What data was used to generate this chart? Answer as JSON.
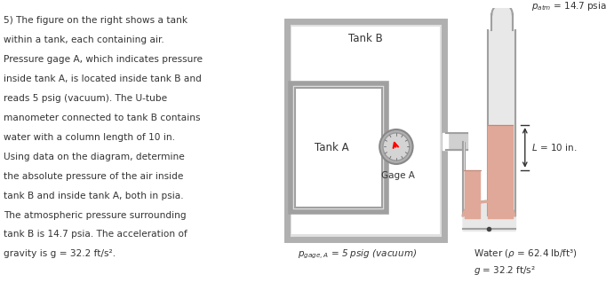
{
  "text_color": "#333333",
  "tank_b_gray": "#b0b0b0",
  "tank_b_fill": "#e0e0e0",
  "tank_a_gray": "#a0a0a0",
  "tank_a_fill": "#ffffff",
  "water_color": "#e0a898",
  "tube_wall_color": "#a0a0a0",
  "tube_fill_color": "#d8d8d8",
  "pipe_color": "#b8b8b8",
  "gage_rim_color": "#888888",
  "gage_face_color": "#c8c8c8",
  "patm_label": "$p_{atm}$ = 14.7 psia",
  "L_label": "$L$ = 10 in.",
  "gage_label": "Gage A",
  "pgage_label": "$p_{gage, A}$ = 5 psig (vacuum)",
  "water_label_line1": "Water ($\\rho$ = 62.4 lb/ft³)",
  "water_label_line2": "$g$ = 32.2 ft/s²",
  "tank_b_text": "Tank B",
  "tank_a_text": "Tank A",
  "problem_text": "5) The figure on the right shows a tank\nwithin a tank, each containing air.\nPressure gage A, which indicates pressure\ninside tank A, is located inside tank B and\nreads 5 psig (vacuum). The U-tube\nmanometer connected to tank B contains\nwater with a column length of 10 in.\nUsing data on the diagram, determine\nthe absolute pressure of the air inside\ntank B and inside tank A, both in psia.\nThe atmospheric pressure surrounding\ntank B is 14.7 psia. The acceleration of\ngravity is g = 32.2 ft/s²."
}
